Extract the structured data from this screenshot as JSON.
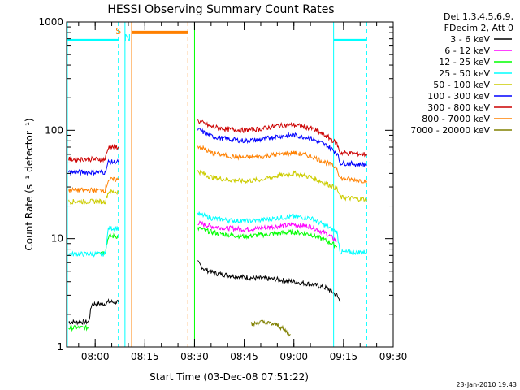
{
  "chart_data": {
    "type": "line",
    "title": "HESSI Observing Summary Count Rates",
    "xlabel": "Start Time (03-Dec-08 07:51:22)",
    "ylabel": "Count Rate (s⁻¹ detector⁻¹)",
    "y_scale": "log",
    "ylim": [
      1,
      1000
    ],
    "y_ticks": [
      1,
      10,
      100,
      1000
    ],
    "y_tick_labels": [
      "1",
      "10",
      "100",
      "1000"
    ],
    "xlim": [
      "07:51:22",
      "09:30:00"
    ],
    "x_ticks": [
      "08:00",
      "08:15",
      "08:30",
      "08:45",
      "09:00",
      "09:15",
      "09:30"
    ],
    "legend_position": "right",
    "legend_header": [
      "Det 1,3,4,5,6,9,",
      "FDecim 2, Att 0"
    ],
    "flags": [
      {
        "label": "S",
        "x": "08:08",
        "color": "#ff8000"
      },
      {
        "label": "N",
        "x": "08:09",
        "color": "#00ffff"
      }
    ],
    "orange_block": {
      "x_start": "08:11",
      "x_end": "08:28",
      "value": 800
    },
    "vertical_markers": [
      {
        "x": "07:51:22",
        "color": "#00ffff",
        "style": "solid"
      },
      {
        "x": "08:07",
        "color": "#00ffff",
        "style": "dashed"
      },
      {
        "x": "08:09",
        "color": "#00ffff",
        "style": "solid"
      },
      {
        "x": "08:11",
        "color": "#ff8000",
        "style": "solid"
      },
      {
        "x": "08:28",
        "color": "#ff8000",
        "style": "dashed"
      },
      {
        "x": "08:30",
        "color": "#00ff00",
        "style": "solid"
      },
      {
        "x": "09:12",
        "color": "#00ffff",
        "style": "solid"
      },
      {
        "x": "09:22",
        "color": "#00ffff",
        "style": "dashed"
      }
    ],
    "top_bars": [
      {
        "x_start": "07:51:22",
        "x_end": "08:07",
        "value": 680,
        "color": "#00ffff"
      },
      {
        "x_start": "09:12",
        "x_end": "09:22",
        "value": 680,
        "color": "#00ffff"
      }
    ],
    "series": [
      {
        "name": "3 - 6 keV",
        "color": "#000000",
        "segments": [
          {
            "x": [
              "07:52",
              "07:58",
              "07:59",
              "08:03",
              "08:04",
              "08:07"
            ],
            "y": [
              1.7,
              1.7,
              2.5,
              2.5,
              2.6,
              2.6
            ]
          },
          {
            "x": [
              "08:31",
              "08:33",
              "08:36",
              "08:40",
              "08:45",
              "08:50",
              "08:55",
              "09:00",
              "09:05",
              "09:10",
              "09:13",
              "09:14"
            ],
            "y": [
              6.0,
              5.2,
              4.8,
              4.6,
              4.4,
              4.3,
              4.2,
              4.0,
              3.8,
              3.5,
              3.0,
              2.6
            ]
          }
        ]
      },
      {
        "name": "6 - 12 keV",
        "color": "#ff00ff",
        "segments": [
          {
            "x": [
              "08:31",
              "08:35",
              "08:40",
              "08:45",
              "08:50",
              "08:55",
              "09:00",
              "09:05",
              "09:10",
              "09:13"
            ],
            "y": [
              14.0,
              13.0,
              12.5,
              12.2,
              12.5,
              13.0,
              13.5,
              13.0,
              11.0,
              9.5
            ]
          }
        ]
      },
      {
        "name": "12 - 25 keV",
        "color": "#00ff00",
        "segments": [
          {
            "x": [
              "07:52",
              "07:58"
            ],
            "y": [
              1.5,
              1.5
            ]
          },
          {
            "x": [
              "08:00",
              "08:03",
              "08:04",
              "08:07"
            ],
            "y": [
              7.5,
              7.5,
              10.5,
              10.5
            ]
          },
          {
            "x": [
              "08:31",
              "08:35",
              "08:40",
              "08:45",
              "08:50",
              "08:55",
              "09:00",
              "09:05",
              "09:10",
              "09:13"
            ],
            "y": [
              12.5,
              11.5,
              10.8,
              10.5,
              10.8,
              11.2,
              11.5,
              11.0,
              9.5,
              8.5
            ]
          }
        ]
      },
      {
        "name": "25 - 50 keV",
        "color": "#00ffff",
        "segments": [
          {
            "x": [
              "07:52",
              "08:03",
              "08:04",
              "08:07"
            ],
            "y": [
              7.2,
              7.2,
              12.5,
              12.5
            ]
          },
          {
            "x": [
              "08:31",
              "08:35",
              "08:40",
              "08:45",
              "08:50",
              "08:55",
              "09:00",
              "09:05",
              "09:10",
              "09:13",
              "09:14",
              "09:22"
            ],
            "y": [
              17.0,
              15.5,
              14.8,
              14.5,
              14.8,
              15.5,
              16.0,
              15.5,
              13.0,
              11.5,
              7.5,
              7.5
            ]
          }
        ]
      },
      {
        "name": "50 - 100 keV",
        "color": "#cccc00",
        "segments": [
          {
            "x": [
              "07:52",
              "08:03",
              "08:04",
              "08:07"
            ],
            "y": [
              22,
              22,
              27,
              27
            ]
          },
          {
            "x": [
              "08:31",
              "08:35",
              "08:40",
              "08:45",
              "08:50",
              "08:55",
              "09:00",
              "09:05",
              "09:10",
              "09:13",
              "09:14",
              "09:22"
            ],
            "y": [
              42,
              37,
              35,
              34,
              35,
              38,
              40,
              37,
              32,
              29,
              24,
              23
            ]
          }
        ]
      },
      {
        "name": "100 - 300 keV",
        "color": "#0000ff",
        "segments": [
          {
            "x": [
              "07:52",
              "08:03",
              "08:04",
              "08:07"
            ],
            "y": [
              41,
              41,
              51,
              51
            ]
          },
          {
            "x": [
              "08:31",
              "08:35",
              "08:40",
              "08:45",
              "08:50",
              "08:55",
              "09:00",
              "09:05",
              "09:10",
              "09:13",
              "09:14",
              "09:22"
            ],
            "y": [
              102,
              88,
              83,
              80,
              82,
              88,
              90,
              85,
              72,
              62,
              50,
              48
            ]
          }
        ]
      },
      {
        "name": "300 - 800 keV",
        "color": "#cc0000",
        "segments": [
          {
            "x": [
              "07:52",
              "08:03",
              "08:04",
              "08:07"
            ],
            "y": [
              54,
              54,
              70,
              70
            ]
          },
          {
            "x": [
              "08:31",
              "08:35",
              "08:40",
              "08:45",
              "08:50",
              "08:55",
              "09:00",
              "09:05",
              "09:10",
              "09:13",
              "09:14",
              "09:22"
            ],
            "y": [
              122,
              108,
              102,
              100,
              103,
              110,
              112,
              105,
              88,
              75,
              62,
              60
            ]
          }
        ]
      },
      {
        "name": "800 - 7000 keV",
        "color": "#ff8000",
        "segments": [
          {
            "x": [
              "07:52",
              "08:03",
              "08:04",
              "08:07"
            ],
            "y": [
              28,
              28,
              35,
              35
            ]
          },
          {
            "x": [
              "08:31",
              "08:35",
              "08:40",
              "08:45",
              "08:50",
              "08:55",
              "09:00",
              "09:05",
              "09:10",
              "09:13",
              "09:14",
              "09:22"
            ],
            "y": [
              72,
              62,
              58,
              56,
              57,
              60,
              62,
              58,
              50,
              45,
              36,
              34
            ]
          }
        ]
      },
      {
        "name": "7000 - 20000 keV",
        "color": "#808000",
        "segments": [
          {
            "x": [
              "08:47",
              "08:50",
              "08:55",
              "08:59"
            ],
            "y": [
              1.6,
              1.7,
              1.6,
              1.3
            ]
          }
        ]
      }
    ],
    "timestamp": "23-Jan-2010 19:43"
  }
}
